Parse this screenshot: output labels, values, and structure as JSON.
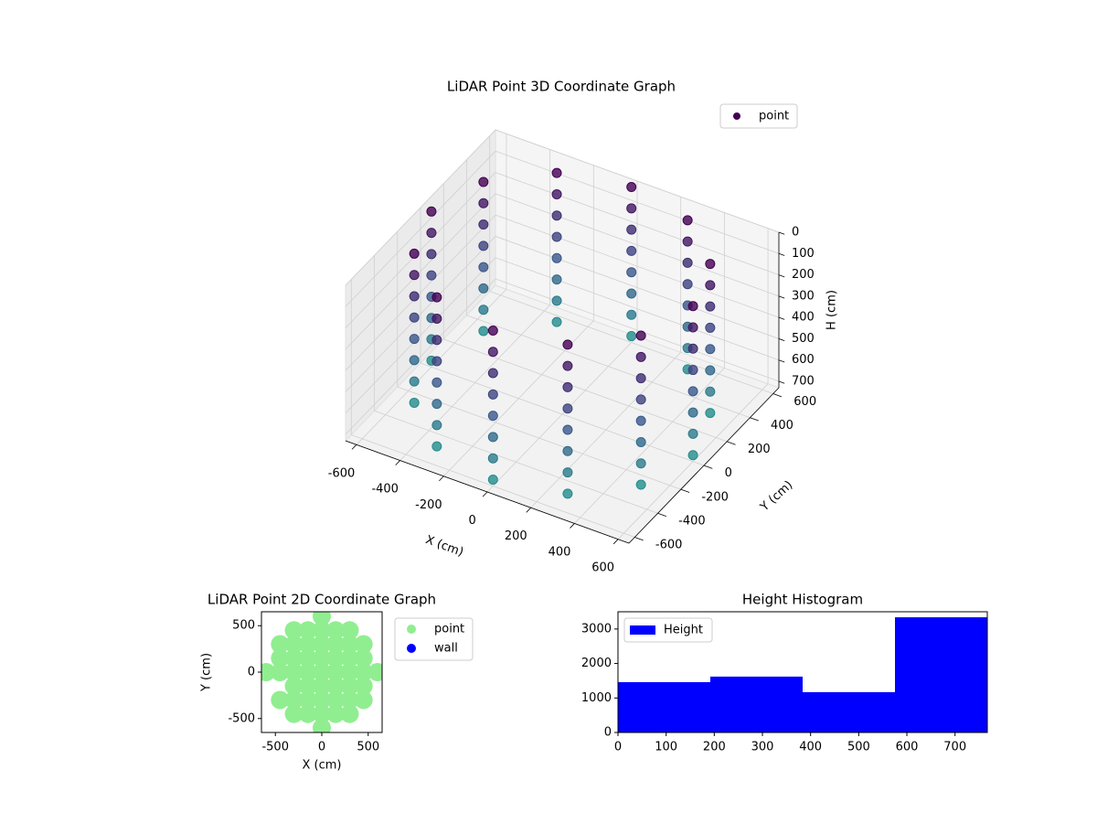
{
  "chart_data": [
    {
      "type": "scatter3d",
      "title": "LiDAR Point 3D Coordinate Graph",
      "legend": "point",
      "legend_loc": "upper right",
      "xlabel": "X (cm)",
      "ylabel": "Y (cm)",
      "zlabel": "H (cm)",
      "xlim": [
        -650,
        650
      ],
      "ylim": [
        -650,
        650
      ],
      "zlim": [
        0,
        730
      ],
      "zinvert": true,
      "cmap": "viridis",
      "xticks": [
        -600,
        -400,
        -200,
        0,
        200,
        400,
        600
      ],
      "yticks": [
        -600,
        -400,
        -200,
        0,
        200,
        400,
        600
      ],
      "zticks": [
        0,
        100,
        200,
        300,
        400,
        500,
        600,
        700
      ],
      "x": [
        600,
        520,
        300,
        0,
        -300,
        -520,
        -600,
        -520,
        -300,
        0,
        300,
        520,
        600,
        520,
        300,
        0,
        -300,
        -520,
        -600,
        -520,
        -300,
        0,
        300,
        520,
        600,
        520,
        300,
        0,
        -300,
        -520,
        -600,
        -520,
        -300,
        0,
        300,
        520,
        600,
        520,
        300,
        0,
        -300,
        -520,
        -600,
        -520,
        -300,
        0,
        300,
        520,
        600,
        520,
        300,
        0,
        -300,
        -520,
        -600,
        -520,
        -300,
        0,
        300,
        520,
        600,
        520,
        300,
        0,
        -300,
        -520,
        -600,
        -520,
        -300,
        0,
        300,
        520,
        600,
        520,
        300,
        0,
        -300,
        -520,
        -600,
        -520,
        -300,
        0,
        300,
        520,
        600,
        520,
        300,
        0,
        -300,
        -520,
        -600,
        -520,
        -300,
        0,
        300,
        520
      ],
      "y": [
        0,
        300,
        520,
        600,
        520,
        300,
        0,
        -300,
        -520,
        -600,
        -520,
        -300,
        0,
        300,
        520,
        600,
        520,
        300,
        0,
        -300,
        -520,
        -600,
        -520,
        -300,
        0,
        300,
        520,
        600,
        520,
        300,
        0,
        -300,
        -520,
        -600,
        -520,
        -300,
        0,
        300,
        520,
        600,
        520,
        300,
        0,
        -300,
        -520,
        -600,
        -520,
        -300,
        0,
        300,
        520,
        600,
        520,
        300,
        0,
        -300,
        -520,
        -600,
        -520,
        -300,
        0,
        300,
        520,
        600,
        520,
        300,
        0,
        -300,
        -520,
        -600,
        -520,
        -300,
        0,
        300,
        520,
        600,
        520,
        300,
        0,
        -300,
        -520,
        -600,
        -520,
        -300,
        0,
        300,
        520,
        600,
        520,
        300,
        0,
        -300,
        -520,
        -600,
        -520,
        -300
      ],
      "z": [
        0,
        0,
        0,
        0,
        0,
        0,
        0,
        0,
        0,
        0,
        0,
        0,
        100,
        100,
        100,
        100,
        100,
        100,
        100,
        100,
        100,
        100,
        100,
        100,
        200,
        200,
        200,
        200,
        200,
        200,
        200,
        200,
        200,
        200,
        200,
        200,
        300,
        300,
        300,
        300,
        300,
        300,
        300,
        300,
        300,
        300,
        300,
        300,
        400,
        400,
        400,
        400,
        400,
        400,
        400,
        400,
        400,
        400,
        400,
        400,
        500,
        500,
        500,
        500,
        500,
        500,
        500,
        500,
        500,
        500,
        500,
        500,
        600,
        600,
        600,
        600,
        600,
        600,
        600,
        600,
        600,
        600,
        600,
        600,
        700,
        700,
        700,
        700,
        700,
        700,
        700,
        700,
        700,
        700,
        700,
        700
      ]
    },
    {
      "type": "scatter",
      "title": "LiDAR Point 2D Coordinate Graph",
      "xlabel": "X (cm)",
      "ylabel": "Y (cm)",
      "xlim": [
        -650,
        650
      ],
      "ylim": [
        -650,
        650
      ],
      "xticks": [
        -500,
        0,
        500
      ],
      "yticks": [
        -500,
        0,
        500
      ],
      "legend_loc": "outside right",
      "series": [
        {
          "name": "point",
          "color": "#90ee90",
          "x": [
            0,
            -300,
            -150,
            0,
            150,
            300,
            -450,
            -300,
            -150,
            0,
            150,
            300,
            450,
            -450,
            -300,
            -150,
            0,
            150,
            300,
            450,
            -600,
            -450,
            -300,
            -150,
            0,
            150,
            300,
            450,
            600,
            -300,
            -150,
            0,
            150,
            300,
            450,
            -450,
            -300,
            -150,
            0,
            150,
            300,
            450,
            -300,
            -150,
            0,
            150,
            300,
            0
          ],
          "y": [
            600,
            450,
            450,
            450,
            450,
            450,
            300,
            300,
            300,
            300,
            300,
            300,
            300,
            150,
            150,
            150,
            150,
            150,
            150,
            150,
            0,
            0,
            0,
            0,
            0,
            0,
            0,
            0,
            0,
            -150,
            -150,
            -150,
            -150,
            -150,
            -150,
            -300,
            -300,
            -300,
            -300,
            -300,
            -300,
            -300,
            -450,
            -450,
            -450,
            -450,
            -450,
            -600
          ]
        },
        {
          "name": "wall",
          "color": "#0000ff",
          "x": [],
          "y": []
        }
      ]
    },
    {
      "type": "histogram",
      "title": "Height Histogram",
      "legend_loc": "upper left",
      "series": [
        {
          "name": "Height",
          "color": "#0000ff",
          "values": [
            1460,
            1620,
            1170,
            3340
          ]
        }
      ],
      "bins": [
        0,
        191.75,
        383.5,
        575.25,
        767
      ],
      "xlim": [
        0,
        767
      ],
      "ylim": [
        0,
        3500
      ],
      "xticks": [
        0,
        100,
        200,
        300,
        400,
        500,
        600,
        700
      ],
      "yticks": [
        0,
        1000,
        2000,
        3000
      ]
    }
  ]
}
